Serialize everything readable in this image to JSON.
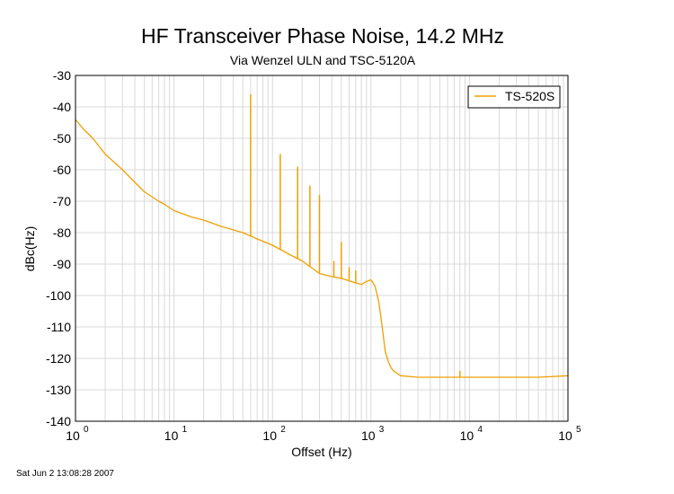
{
  "chart_data": {
    "type": "line",
    "title": "HF Transceiver Phase Noise, 14.2 MHz",
    "subtitle": "Via Wenzel ULN and TSC-5120A",
    "xlabel": "Offset (Hz)",
    "ylabel": "dBc(Hz)",
    "xscale": "log",
    "xlim": [
      1,
      100000
    ],
    "ylim": [
      -140,
      -30
    ],
    "grid": true,
    "legend_position": "top-right",
    "x_ticks": [
      {
        "base": "10",
        "exp": "0",
        "value": 1
      },
      {
        "base": "10",
        "exp": "1",
        "value": 10
      },
      {
        "base": "10",
        "exp": "2",
        "value": 100
      },
      {
        "base": "10",
        "exp": "3",
        "value": 1000
      },
      {
        "base": "10",
        "exp": "4",
        "value": 10000
      },
      {
        "base": "10",
        "exp": "5",
        "value": 100000
      }
    ],
    "y_ticks": [
      "-30",
      "-40",
      "-50",
      "-60",
      "-70",
      "-80",
      "-90",
      "-100",
      "-110",
      "-120",
      "-130",
      "-140"
    ],
    "y_tick_values": [
      -30,
      -40,
      -50,
      -60,
      -70,
      -80,
      -90,
      -100,
      -110,
      -120,
      -130,
      -140
    ],
    "series": [
      {
        "name": "TS-520S",
        "color": "#f0a000",
        "x": [
          1,
          1.2,
          1.5,
          2,
          3,
          4,
          5,
          7,
          8,
          10,
          15,
          20,
          30,
          50,
          70,
          100,
          150,
          200,
          300,
          400,
          500,
          700,
          800,
          900,
          1000,
          1100,
          1200,
          1300,
          1400,
          1500,
          1600,
          1700,
          2000,
          3000,
          5000,
          10000,
          20000,
          50000,
          100000
        ],
        "y": [
          -44,
          -47,
          -50,
          -55,
          -60,
          -64,
          -67,
          -70,
          -71,
          -73,
          -75,
          -76,
          -78,
          -80,
          -82,
          -84,
          -87,
          -89,
          -93,
          -94,
          -94.5,
          -96,
          -96.5,
          -95.5,
          -95,
          -97,
          -102,
          -110,
          -118,
          -121,
          -123,
          -124,
          -125.5,
          -126,
          -126,
          -126,
          -126,
          -126,
          -125.5
        ]
      }
    ],
    "spurs": [
      {
        "x": 60,
        "y": -36
      },
      {
        "x": 120,
        "y": -55
      },
      {
        "x": 180,
        "y": -59
      },
      {
        "x": 240,
        "y": -65
      },
      {
        "x": 300,
        "y": -68
      },
      {
        "x": 420,
        "y": -89
      },
      {
        "x": 500,
        "y": -83
      },
      {
        "x": 600,
        "y": -91
      },
      {
        "x": 700,
        "y": -92
      },
      {
        "x": 8000,
        "y": -124
      }
    ]
  },
  "timestamp": "Sat Jun  2 13:08:28 2007"
}
